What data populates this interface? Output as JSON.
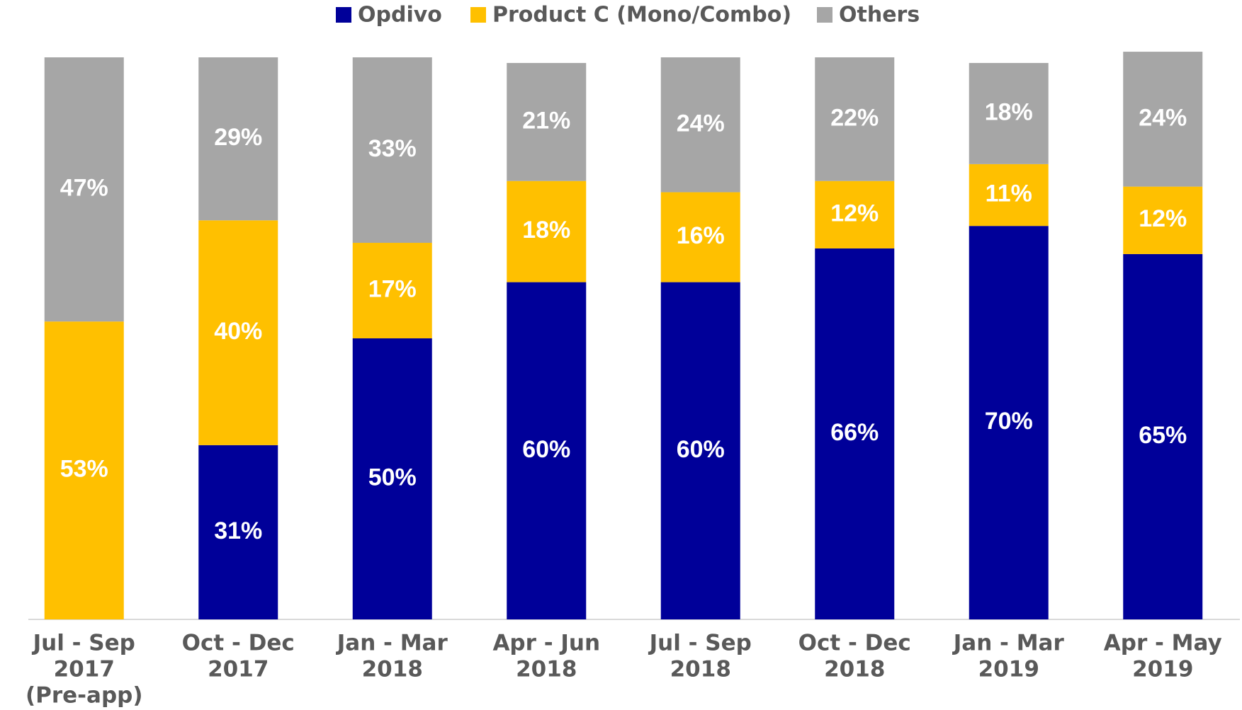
{
  "chart_data": {
    "type": "stacked_bar",
    "categories": [
      [
        "Jul - Sep",
        "2017",
        "(Pre-app)"
      ],
      [
        "Oct - Dec",
        "2017"
      ],
      [
        "Jan - Mar",
        "2018"
      ],
      [
        "Apr - Jun",
        "2018"
      ],
      [
        "Jul - Sep",
        "2018"
      ],
      [
        "Oct - Dec",
        "2018"
      ],
      [
        "Jan - Mar",
        "2019"
      ],
      [
        "Apr - May",
        "2019"
      ]
    ],
    "series": [
      {
        "name": "Opdivo",
        "color": "#000099",
        "values": [
          null,
          31,
          50,
          60,
          60,
          66,
          70,
          65
        ],
        "value_labels": [
          null,
          "31%",
          "50%",
          "60%",
          "60%",
          "66%",
          "70%",
          "65%"
        ]
      },
      {
        "name": "Product C (Mono/Combo)",
        "color": "#ffc000",
        "values": [
          53,
          40,
          17,
          18,
          16,
          12,
          11,
          12
        ],
        "value_labels": [
          "53%",
          "40%",
          "17%",
          "18%",
          "16%",
          "12%",
          "11%",
          "12%"
        ]
      },
      {
        "name": "Others",
        "color": "#a6a6a6",
        "values": [
          47,
          29,
          33,
          21,
          24,
          22,
          18,
          24
        ],
        "value_labels": [
          "47%",
          "29%",
          "33%",
          "21%",
          "24%",
          "22%",
          "18%",
          "24%"
        ]
      }
    ],
    "ylim": [
      0,
      100
    ],
    "legend": "top"
  }
}
